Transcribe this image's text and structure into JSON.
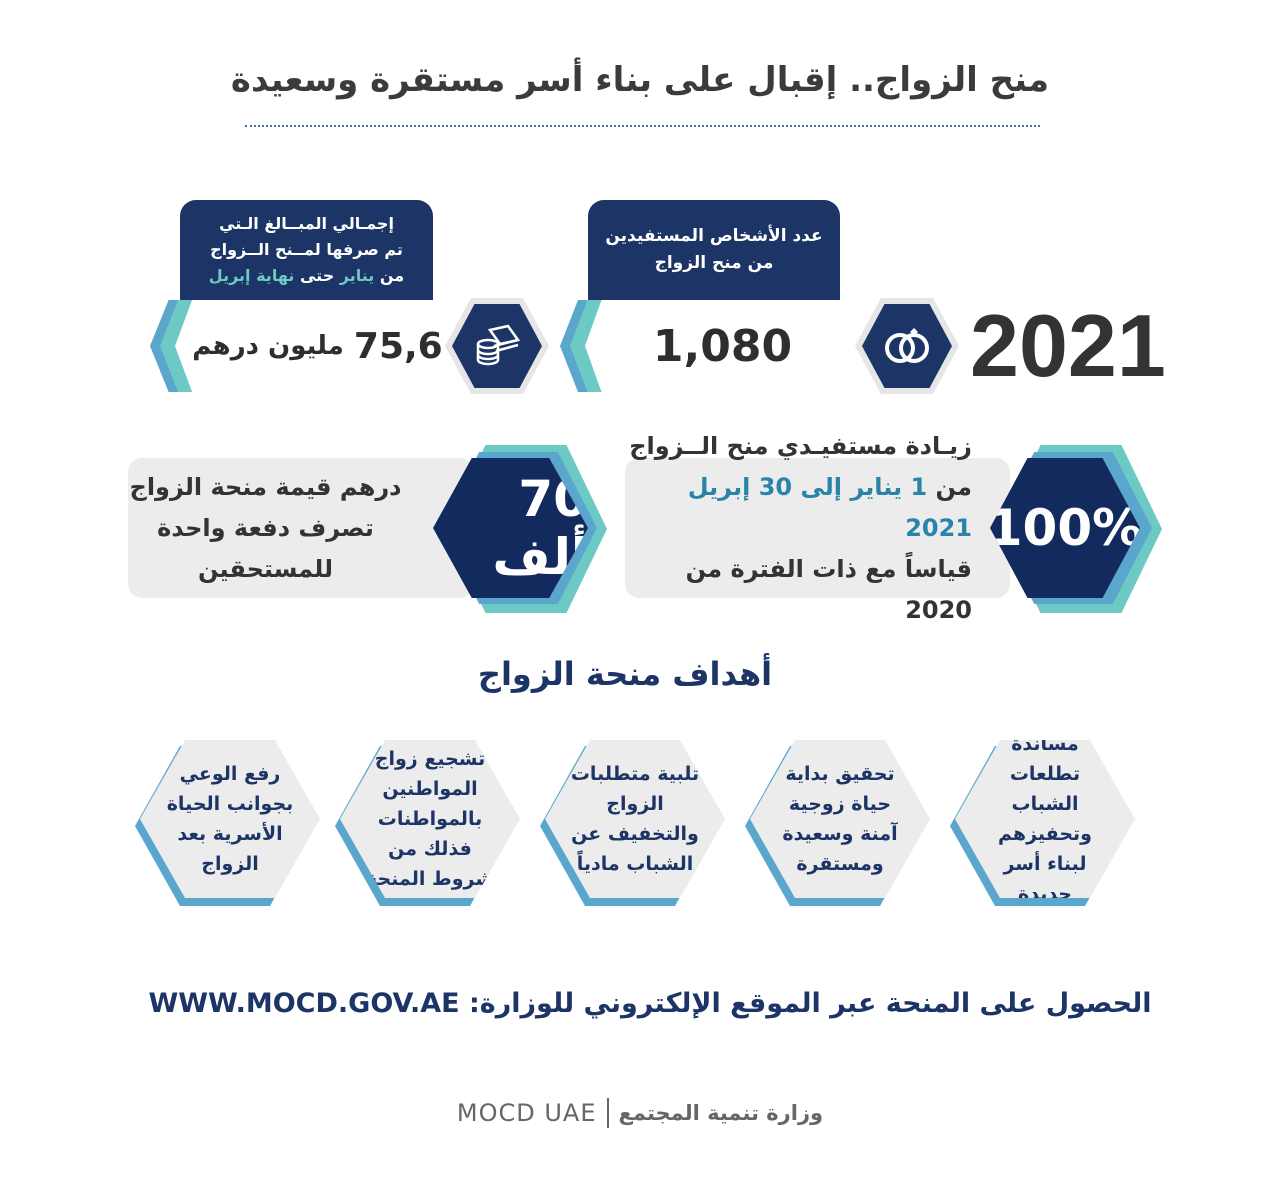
{
  "title": "منح الزواج.. إقبال على بناء أسر مستقرة وسعيدة",
  "year": "2021",
  "beneficiaries": {
    "header_line1": "عدد الأشخاص المستفيدين",
    "header_line2": "من منح الزواج",
    "value": "1,080",
    "icon": "rings-icon"
  },
  "amount": {
    "header_line1": "إجمـالي المبــالغ الـتي",
    "header_line2": "تم صرفها لمــنح الــزواج",
    "header_pre": "من",
    "header_jan": "يناير",
    "header_mid": "حتى",
    "header_end": "نهاية إبريل",
    "value": "75,6",
    "unit": "مليون درهم",
    "icon": "money-coins-icon"
  },
  "increase": {
    "value": "100%",
    "line1": "زيـادة مستفيـدي منح الــزواج",
    "line2_pre": "من",
    "line2_highlight": "1 يناير إلى 30 إبريل 2021",
    "line3": "قياساً مع ذات الفترة من 2020"
  },
  "grant": {
    "value": "70 ألف",
    "line1": "درهم قيمة منحة الزواج",
    "line2": "تصرف دفعة واحدة",
    "line3": "للمستحقين"
  },
  "goals_title": "أهداف منحة الزواج",
  "goals": [
    "مساندة تطلعات الشباب وتحفيزهم لبناء أسر جديدة",
    "تحقيق بداية حياة زوجية آمنة وسعيدة ومستقرة",
    "تلبية متطلبات الزواج والتخفيف عن الشباب مادياً",
    "تشجيع زواج المواطنين بالمواطنات فذلك من شروط المنحة",
    "رفع الوعي بجوانب الحياة الأسرية بعد الزواج"
  ],
  "website_text": "الحصول على المنحة عبر الموقع الإلكتروني للوزارة: WWW.MOCD.GOV.AE",
  "footer": {
    "ar": "وزارة تنمية المجتمع",
    "en": "MOCD UAE"
  },
  "colors": {
    "navy": "#1d3566",
    "teal": "#6cc9c3",
    "blue": "#5aa6cc",
    "grey": "#ececec"
  }
}
